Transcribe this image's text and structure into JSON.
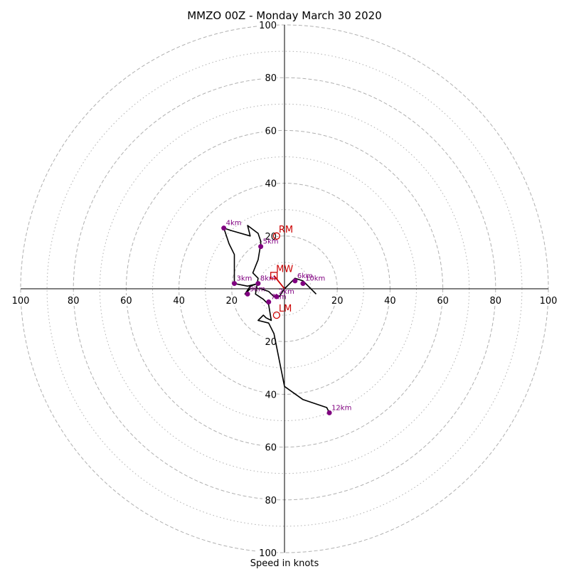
{
  "chart_data": {
    "type": "hodograph",
    "title": "MMZO 00Z - Monday March 30 2020",
    "xlabel": "Speed in knots",
    "ylabel": "",
    "range": [
      -100,
      100
    ],
    "rings_major": [
      20,
      40,
      60,
      80,
      100
    ],
    "rings_minor": [
      10,
      30,
      50,
      70,
      90
    ],
    "tick_labels": {
      "x": [
        100,
        80,
        60,
        40,
        20,
        20,
        40,
        60,
        80,
        100
      ],
      "x_values": [
        -100,
        -80,
        -60,
        -40,
        -20,
        20,
        40,
        60,
        80,
        100
      ],
      "y": [
        100,
        80,
        60,
        40,
        20,
        20,
        40,
        60,
        80,
        100
      ],
      "y_values": [
        100,
        80,
        60,
        40,
        20,
        -20,
        -40,
        -60,
        -80,
        -100
      ]
    },
    "grid": true,
    "colors": {
      "trace": "#000000",
      "height_marker": "#800080",
      "motion": "#cc0000",
      "grid": "#b0b0b0"
    },
    "trace": [
      [
        12,
        -2
      ],
      [
        9,
        1
      ],
      [
        7,
        3
      ],
      [
        4,
        4
      ],
      [
        3,
        3
      ],
      [
        0,
        0
      ],
      [
        -2,
        -3
      ],
      [
        -4,
        -3
      ],
      [
        -6,
        -1
      ],
      [
        -9,
        0
      ],
      [
        -13,
        0
      ],
      [
        -15,
        -2
      ],
      [
        -13,
        1
      ],
      [
        -10,
        2
      ],
      [
        -14,
        1
      ],
      [
        -19,
        2
      ],
      [
        -19,
        13
      ],
      [
        -21,
        17
      ],
      [
        -23,
        23
      ],
      [
        -20,
        22
      ],
      [
        -13,
        20
      ],
      [
        -14,
        24
      ],
      [
        -10,
        21
      ],
      [
        -9,
        18
      ],
      [
        -9,
        17
      ],
      [
        -10,
        11
      ],
      [
        -12,
        6
      ],
      [
        -10,
        4
      ],
      [
        -11,
        -2
      ],
      [
        -8,
        -4
      ],
      [
        -7,
        -5
      ],
      [
        -6,
        -6
      ],
      [
        -5,
        -12
      ],
      [
        -7,
        -11
      ],
      [
        -8,
        -10
      ],
      [
        -10,
        -12
      ],
      [
        -6,
        -13
      ],
      [
        -4,
        -17
      ],
      [
        0,
        -37
      ],
      [
        7,
        -42
      ],
      [
        16,
        -45
      ],
      [
        17,
        -47
      ]
    ],
    "height_markers": [
      {
        "label": "2km",
        "u": -3,
        "v": -3
      },
      {
        "label": "3km",
        "u": -19,
        "v": 2
      },
      {
        "label": "4km",
        "u": -23,
        "v": 23
      },
      {
        "label": "5km",
        "u": -9,
        "v": 16
      },
      {
        "label": "6km",
        "u": 4,
        "v": 3
      },
      {
        "label": "7km",
        "u": -6,
        "v": -5
      },
      {
        "label": "8km",
        "u": -10,
        "v": 2
      },
      {
        "label": "9km",
        "u": -14,
        "v": -2
      },
      {
        "label": "10km",
        "u": 7,
        "v": 2
      },
      {
        "label": "12km",
        "u": 17,
        "v": -47
      }
    ],
    "storm_motion": [
      {
        "label": "RM",
        "u": -3,
        "v": 20,
        "marker": "circle"
      },
      {
        "label": "MW",
        "u": -4,
        "v": 5,
        "marker": "square"
      },
      {
        "label": "LM",
        "u": -3,
        "v": -10,
        "marker": "circle"
      }
    ],
    "mean_wind_vector": {
      "u": -4,
      "v": 5
    }
  }
}
